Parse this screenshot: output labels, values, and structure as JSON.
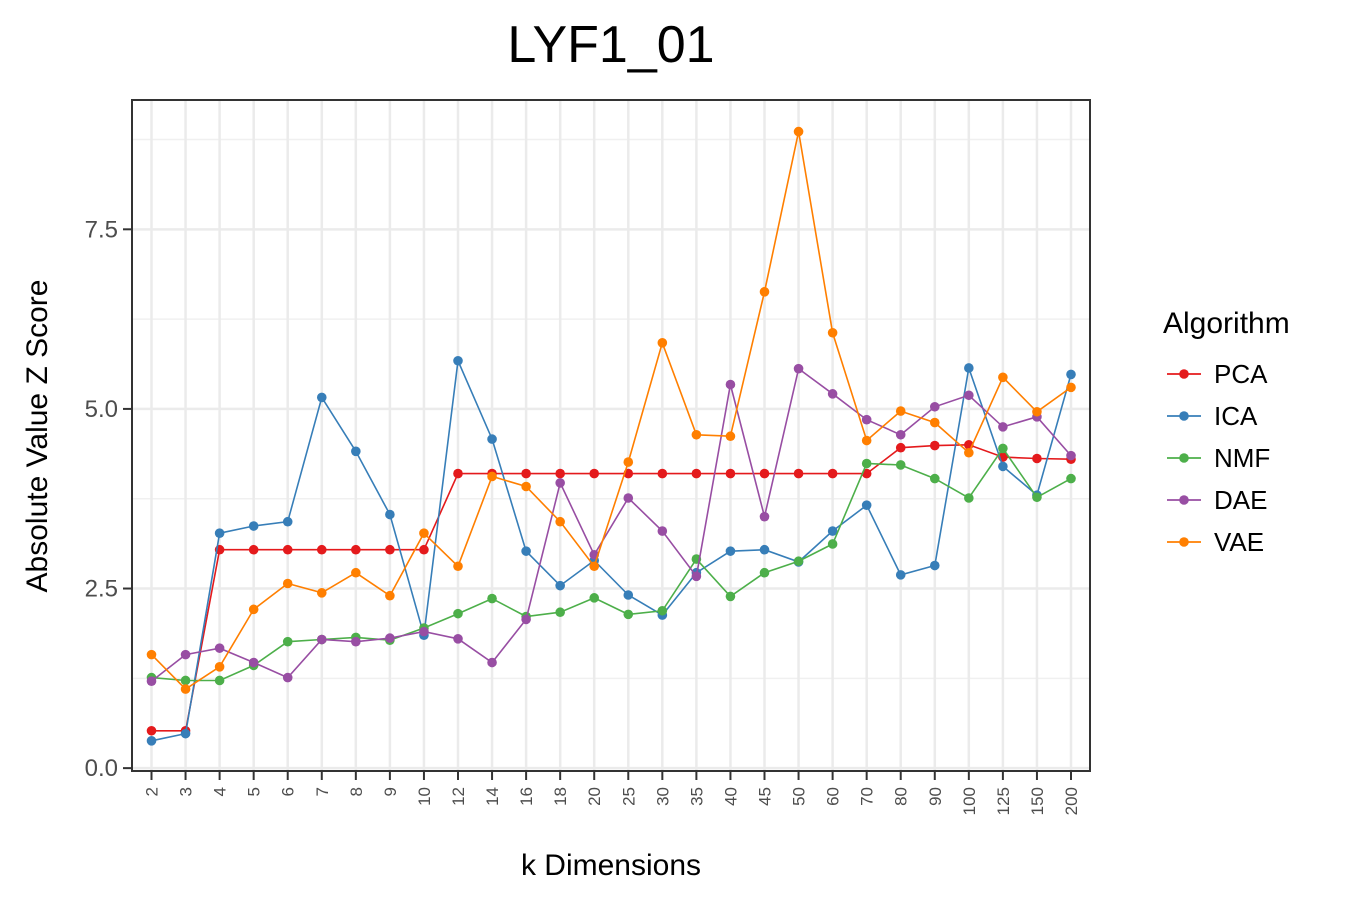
{
  "chart_data": {
    "type": "line",
    "title": "LYF1_01",
    "xlabel": "k Dimensions",
    "ylabel": "Absolute Value Z Score",
    "categories": [
      "2",
      "3",
      "4",
      "5",
      "6",
      "7",
      "8",
      "9",
      "10",
      "12",
      "14",
      "16",
      "18",
      "20",
      "25",
      "30",
      "35",
      "40",
      "45",
      "50",
      "60",
      "70",
      "80",
      "90",
      "100",
      "125",
      "150",
      "200"
    ],
    "y_ticks": [
      "0.0",
      "2.5",
      "5.0",
      "7.5"
    ],
    "ylim": [
      -0.04,
      9.3
    ],
    "grid": true,
    "legend": {
      "title": "Algorithm",
      "position": "right"
    },
    "series": [
      {
        "name": "PCA",
        "color": "#e41a1c",
        "values": [
          0.52,
          0.52,
          3.04,
          3.04,
          3.04,
          3.04,
          3.04,
          3.04,
          3.04,
          4.1,
          4.1,
          4.1,
          4.1,
          4.1,
          4.1,
          4.1,
          4.1,
          4.1,
          4.1,
          4.1,
          4.1,
          4.1,
          4.46,
          4.49,
          4.5,
          4.33,
          4.31,
          4.3
        ]
      },
      {
        "name": "ICA",
        "color": "#377eb8",
        "values": [
          0.38,
          0.48,
          3.27,
          3.37,
          3.43,
          5.16,
          4.41,
          3.53,
          1.85,
          5.67,
          4.58,
          3.02,
          2.54,
          2.89,
          2.41,
          2.13,
          2.72,
          3.02,
          3.04,
          2.87,
          3.3,
          3.66,
          2.69,
          2.82,
          5.57,
          4.2,
          3.8,
          5.48
        ]
      },
      {
        "name": "NMF",
        "color": "#4daf4a",
        "values": [
          1.26,
          1.22,
          1.22,
          1.43,
          1.76,
          1.79,
          1.82,
          1.78,
          1.95,
          2.15,
          2.36,
          2.11,
          2.17,
          2.37,
          2.14,
          2.19,
          2.91,
          2.39,
          2.72,
          2.88,
          3.12,
          4.24,
          4.22,
          4.03,
          3.76,
          4.45,
          3.77,
          4.03
        ]
      },
      {
        "name": "DAE",
        "color": "#984ea3",
        "values": [
          1.21,
          1.58,
          1.67,
          1.47,
          1.26,
          1.79,
          1.76,
          1.81,
          1.9,
          1.8,
          1.47,
          2.07,
          3.97,
          2.97,
          3.76,
          3.3,
          2.67,
          5.34,
          3.5,
          5.56,
          5.21,
          4.85,
          4.64,
          5.03,
          5.19,
          4.75,
          4.89,
          4.35
        ]
      },
      {
        "name": "VAE",
        "color": "#ff7f00",
        "values": [
          1.58,
          1.1,
          1.41,
          2.21,
          2.57,
          2.44,
          2.72,
          2.4,
          3.27,
          2.81,
          4.06,
          3.92,
          3.43,
          2.81,
          4.26,
          5.92,
          4.64,
          4.62,
          6.63,
          8.86,
          6.06,
          4.56,
          4.97,
          4.81,
          4.39,
          5.44,
          4.96,
          5.3
        ]
      }
    ]
  }
}
